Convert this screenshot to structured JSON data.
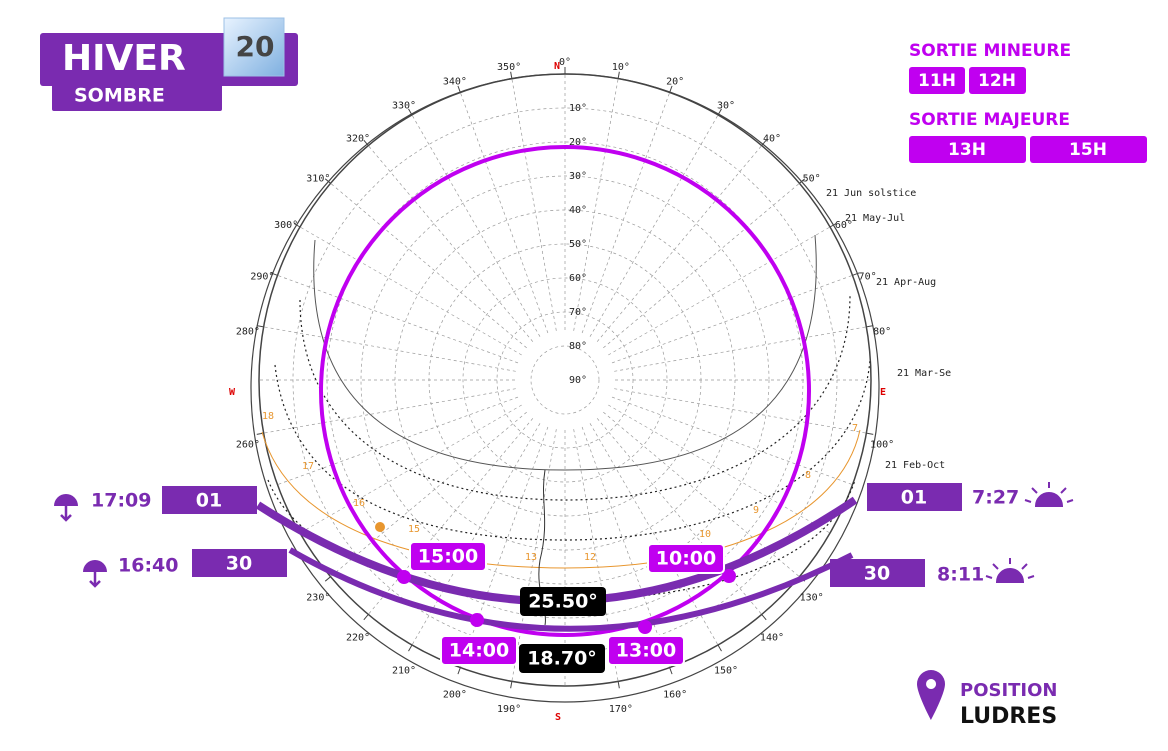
{
  "header": {
    "season": "HIVER",
    "subtitle": "SOMBRE",
    "day": "20"
  },
  "minor_exit": {
    "title": "SORTIE MINEURE",
    "times": [
      "11H",
      "12H"
    ]
  },
  "major_exit": {
    "title": "SORTIE MAJEURE",
    "times": [
      "13H",
      "15H"
    ]
  },
  "position": {
    "label": "POSITION",
    "place": "LUDRES"
  },
  "sun_chart": {
    "compass": {
      "north": "N",
      "east": "E",
      "south": "S",
      "west": "W"
    },
    "azimuth_ticks": [
      {
        "value": 0,
        "label": "0°"
      },
      {
        "value": 10,
        "label": "10°"
      },
      {
        "value": 20,
        "label": "20°"
      },
      {
        "value": 30,
        "label": "30°"
      },
      {
        "value": 40,
        "label": "40°"
      },
      {
        "value": 50,
        "label": "50°"
      },
      {
        "value": 60,
        "label": "60°"
      },
      {
        "value": 70,
        "label": "70°"
      },
      {
        "value": 80,
        "label": "80°"
      },
      {
        "value": 100,
        "label": "100°"
      },
      {
        "value": 130,
        "label": "130°"
      },
      {
        "value": 140,
        "label": "140°"
      },
      {
        "value": 150,
        "label": "150°"
      },
      {
        "value": 160,
        "label": "160°"
      },
      {
        "value": 170,
        "label": "170°"
      },
      {
        "value": 190,
        "label": "190°"
      },
      {
        "value": 200,
        "label": "200°"
      },
      {
        "value": 210,
        "label": "210°"
      },
      {
        "value": 220,
        "label": "220°"
      },
      {
        "value": 230,
        "label": "230°"
      },
      {
        "value": 260,
        "label": "260°"
      },
      {
        "value": 280,
        "label": "280°"
      },
      {
        "value": 290,
        "label": "290°"
      },
      {
        "value": 300,
        "label": "300°"
      },
      {
        "value": 310,
        "label": "310°"
      },
      {
        "value": 320,
        "label": "320°"
      },
      {
        "value": 330,
        "label": "330°"
      },
      {
        "value": 340,
        "label": "340°"
      },
      {
        "value": 350,
        "label": "350°"
      }
    ],
    "altitude_ticks": [
      {
        "value": 10,
        "label": "10°"
      },
      {
        "value": 20,
        "label": "20°"
      },
      {
        "value": 30,
        "label": "30°"
      },
      {
        "value": 40,
        "label": "40°"
      },
      {
        "value": 50,
        "label": "50°"
      },
      {
        "value": 60,
        "label": "60°"
      },
      {
        "value": 70,
        "label": "70°"
      },
      {
        "value": 80,
        "label": "80°"
      },
      {
        "value": 90,
        "label": "90°"
      }
    ],
    "curve_labels": [
      "21 Jun  solstice",
      "21 May-Jul",
      "21 Apr-Aug",
      "21 Mar-Se",
      "21 Feb-Oct"
    ],
    "hour_labels": [
      "18",
      "17",
      "16",
      "15",
      "13",
      "12",
      "10",
      "9",
      "8",
      "7"
    ],
    "time_labels": [
      "15:00",
      "10:00",
      "14:00",
      "13:00"
    ],
    "angle_labels": [
      "25.50°",
      "18.70°"
    ]
  },
  "moon_events": {
    "sets": [
      {
        "time": "17:09",
        "day": "01"
      },
      {
        "time": "16:40",
        "day": "30"
      }
    ],
    "rises": [
      {
        "day": "01",
        "time": "7:27"
      },
      {
        "day": "30",
        "time": "8:11"
      }
    ]
  }
}
